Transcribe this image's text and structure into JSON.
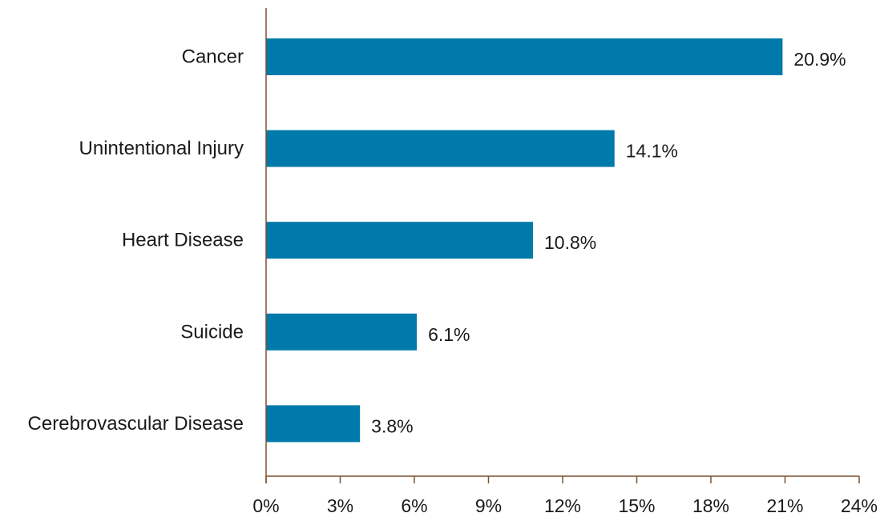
{
  "chart_data": {
    "type": "bar",
    "orientation": "horizontal",
    "categories": [
      "Cancer",
      "Unintentional Injury",
      "Heart Disease",
      "Suicide",
      "Cerebrovascular Disease"
    ],
    "values": [
      20.9,
      14.1,
      10.8,
      6.1,
      3.8
    ],
    "value_labels": [
      "20.9%",
      "14.1%",
      "10.8%",
      "6.1%",
      "3.8%"
    ],
    "x_ticks": [
      0,
      3,
      6,
      9,
      12,
      15,
      18,
      21,
      24
    ],
    "x_tick_labels": [
      "0%",
      "3%",
      "6%",
      "9%",
      "12%",
      "15%",
      "18%",
      "21%",
      "24%"
    ],
    "xlim": [
      0,
      24
    ],
    "title": "",
    "xlabel": "",
    "ylabel": "",
    "grid": false,
    "legend": "none",
    "colors": {
      "bar": "#007aaa",
      "axis": "#7a5230",
      "text": "#1a1a1a"
    }
  }
}
